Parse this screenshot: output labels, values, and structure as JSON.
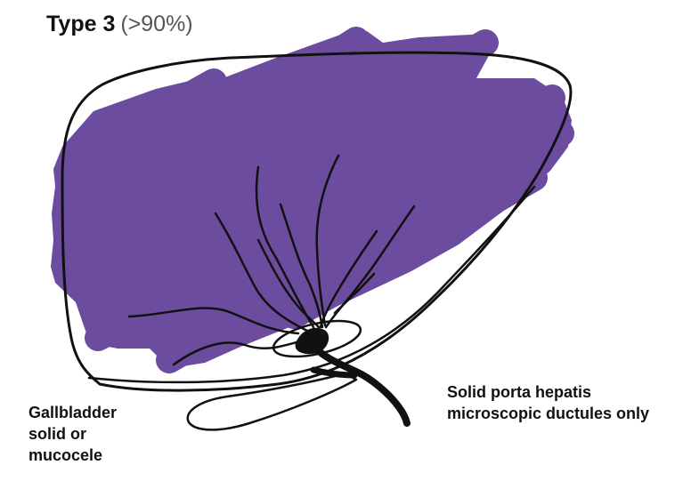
{
  "title": {
    "type_label": "Type 3",
    "percentage": "(>90%)"
  },
  "labels": {
    "gallbladder": [
      "Gallbladder",
      "solid  or",
      "mucocele"
    ],
    "porta_hepatis": [
      "Solid porta hepatis",
      "microscopic ductules only"
    ]
  },
  "colors": {
    "liver_fill": "#6B4C9F",
    "outline": "#111111",
    "text": "#111111",
    "percentage_text": "#555555"
  }
}
